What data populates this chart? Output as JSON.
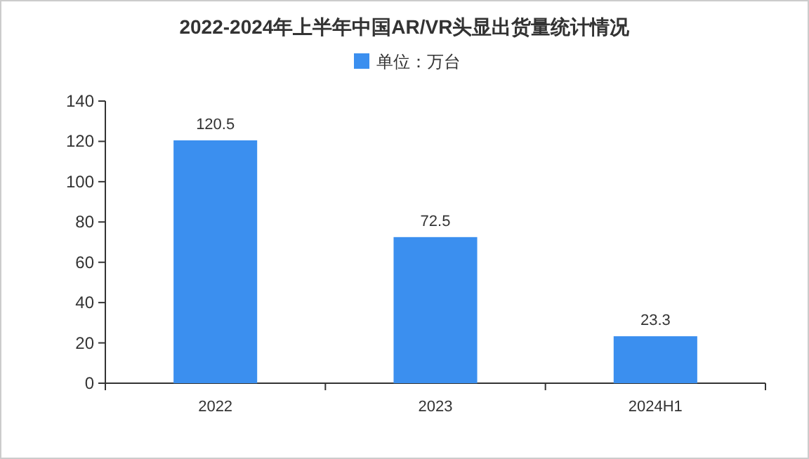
{
  "chart_data": {
    "type": "bar",
    "title": "2022-2024年上半年中国AR/VR头显出货量统计情况",
    "categories": [
      "2022",
      "2023",
      "2024H1"
    ],
    "series": [
      {
        "name": "单位：万台",
        "color": "#3b8fef",
        "values": [
          120.5,
          72.5,
          23.3
        ]
      }
    ],
    "ylim": [
      0,
      140
    ],
    "yticks": [
      0,
      20,
      40,
      60,
      80,
      100,
      120,
      140
    ],
    "data_labels": true,
    "legend": "top"
  }
}
